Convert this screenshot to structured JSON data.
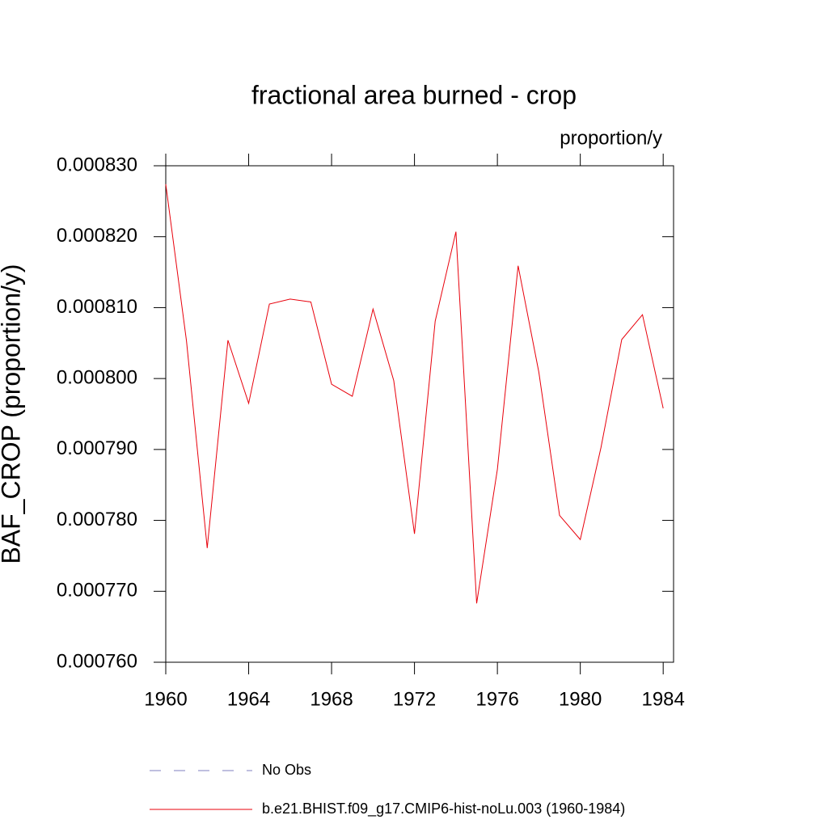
{
  "chart_data": {
    "type": "line",
    "title": "fractional area burned - crop",
    "units": "proportion/y",
    "y_label": "BAF_CROP  (proportion/y)",
    "x": [
      1960,
      1961,
      1962,
      1963,
      1964,
      1965,
      1966,
      1967,
      1968,
      1969,
      1970,
      1971,
      1972,
      1973,
      1974,
      1975,
      1976,
      1977,
      1978,
      1979,
      1980,
      1981,
      1982,
      1983,
      1984
    ],
    "series": [
      {
        "name": "No Obs",
        "color": "#7f7fbf",
        "dashed": true
      },
      {
        "name": "b.e21.BHIST.f09_g17.CMIP6-hist-noLu.003 (1960-1984)",
        "color": "#e8000b",
        "values": [
          0.0008274,
          0.0008053,
          0.0007761,
          0.0008054,
          0.0007965,
          0.0008105,
          0.0008112,
          0.0008108,
          0.0007992,
          0.0007975,
          0.0008098,
          0.0007997,
          0.0007781,
          0.0008081,
          0.0008207,
          0.0007683,
          0.0007872,
          0.0008159,
          0.0008009,
          0.0007807,
          0.0007773,
          0.0007903,
          0.0008055,
          0.000809,
          0.0007958
        ]
      }
    ],
    "xlim": [
      1960,
      1984.5
    ],
    "xticks": [
      1960,
      1964,
      1968,
      1972,
      1976,
      1980,
      1984
    ],
    "ylim": [
      0.00076,
      0.00083
    ],
    "yticks": [
      {
        "value": 0.00076,
        "label": "0.000760"
      },
      {
        "value": 0.00077,
        "label": "0.000770"
      },
      {
        "value": 0.00078,
        "label": "0.000780"
      },
      {
        "value": 0.00079,
        "label": "0.000790"
      },
      {
        "value": 0.0008,
        "label": "0.000800"
      },
      {
        "value": 0.00081,
        "label": "0.000810"
      },
      {
        "value": 0.00082,
        "label": "0.000820"
      },
      {
        "value": 0.00083,
        "label": "0.000830"
      }
    ]
  }
}
